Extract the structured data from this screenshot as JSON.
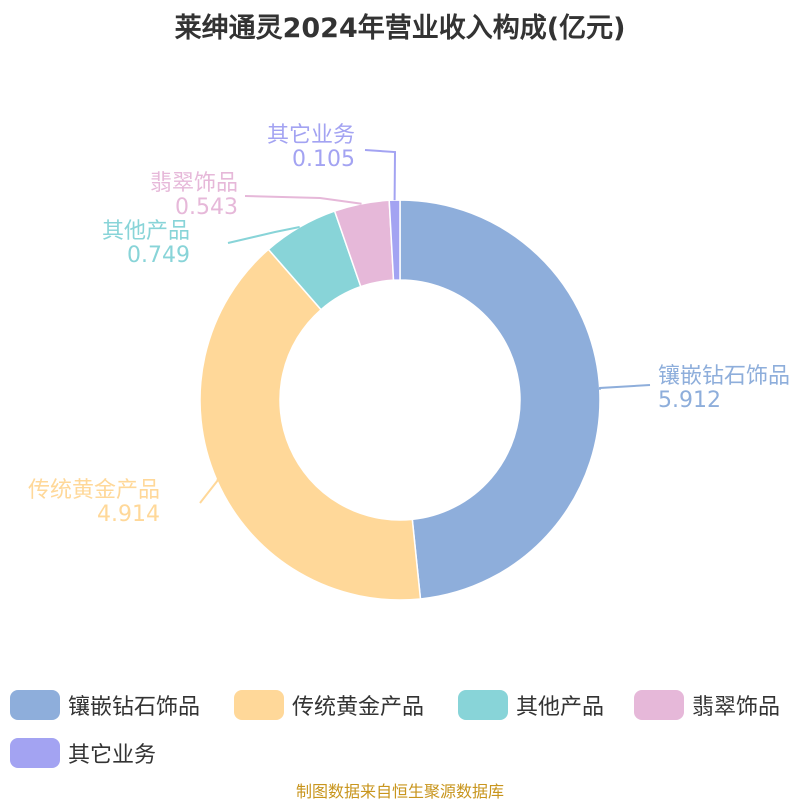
{
  "chart_data": {
    "type": "pie",
    "title": "莱绅通灵2024年营业收入构成(亿元)",
    "slices": [
      {
        "label": "镶嵌钻石饰品",
        "value": 5.912,
        "value_label": "5.912",
        "color": "#8eaedb"
      },
      {
        "label": "传统黄金产品",
        "value": 4.914,
        "value_label": "4.914",
        "color": "#ffd899"
      },
      {
        "label": "其他产品",
        "value": 0.749,
        "value_label": "0.749",
        "color": "#88d4d8"
      },
      {
        "label": "翡翠饰品",
        "value": 0.543,
        "value_label": "0.543",
        "color": "#e6b8d9"
      },
      {
        "label": "其它业务",
        "value": 0.105,
        "value_label": "0.105",
        "color": "#a3a3f2"
      }
    ],
    "legend_position": "bottom"
  },
  "source": "制图数据来自恒生聚源数据库"
}
